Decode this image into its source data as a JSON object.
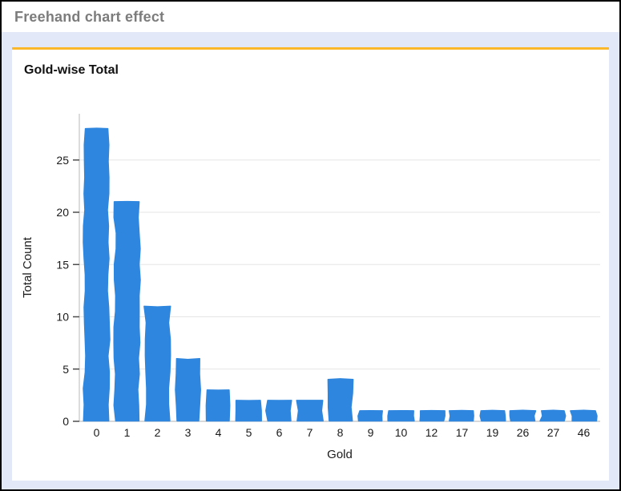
{
  "window": {
    "title": "Freehand chart effect"
  },
  "card": {
    "accent_color": "#fbb829",
    "background": "#ffffff"
  },
  "page": {
    "background": "#e3e8f8",
    "border_color": "#000000",
    "header_text_color": "#7c7c7c"
  },
  "chart_data": {
    "type": "bar",
    "style": "freehand",
    "title": "Gold-wise Total",
    "xlabel": "Gold",
    "ylabel": "Total Count",
    "categories": [
      "0",
      "1",
      "2",
      "3",
      "4",
      "5",
      "6",
      "7",
      "8",
      "9",
      "10",
      "12",
      "17",
      "19",
      "26",
      "27",
      "46"
    ],
    "values": [
      28,
      21,
      11,
      6,
      3,
      2,
      2,
      2,
      4,
      1,
      1,
      1,
      1,
      1,
      1,
      1,
      1
    ],
    "ylim": [
      0,
      28
    ],
    "yticks": [
      0,
      5,
      10,
      15,
      20,
      25
    ],
    "grid": true,
    "legend": "none",
    "bar_color": "#2e86de",
    "gridline_color": "#e6e6e6",
    "axis_line_color": "#cccccc",
    "tick_color": "#4d4d4d",
    "text_color": "#1a1a1a"
  }
}
